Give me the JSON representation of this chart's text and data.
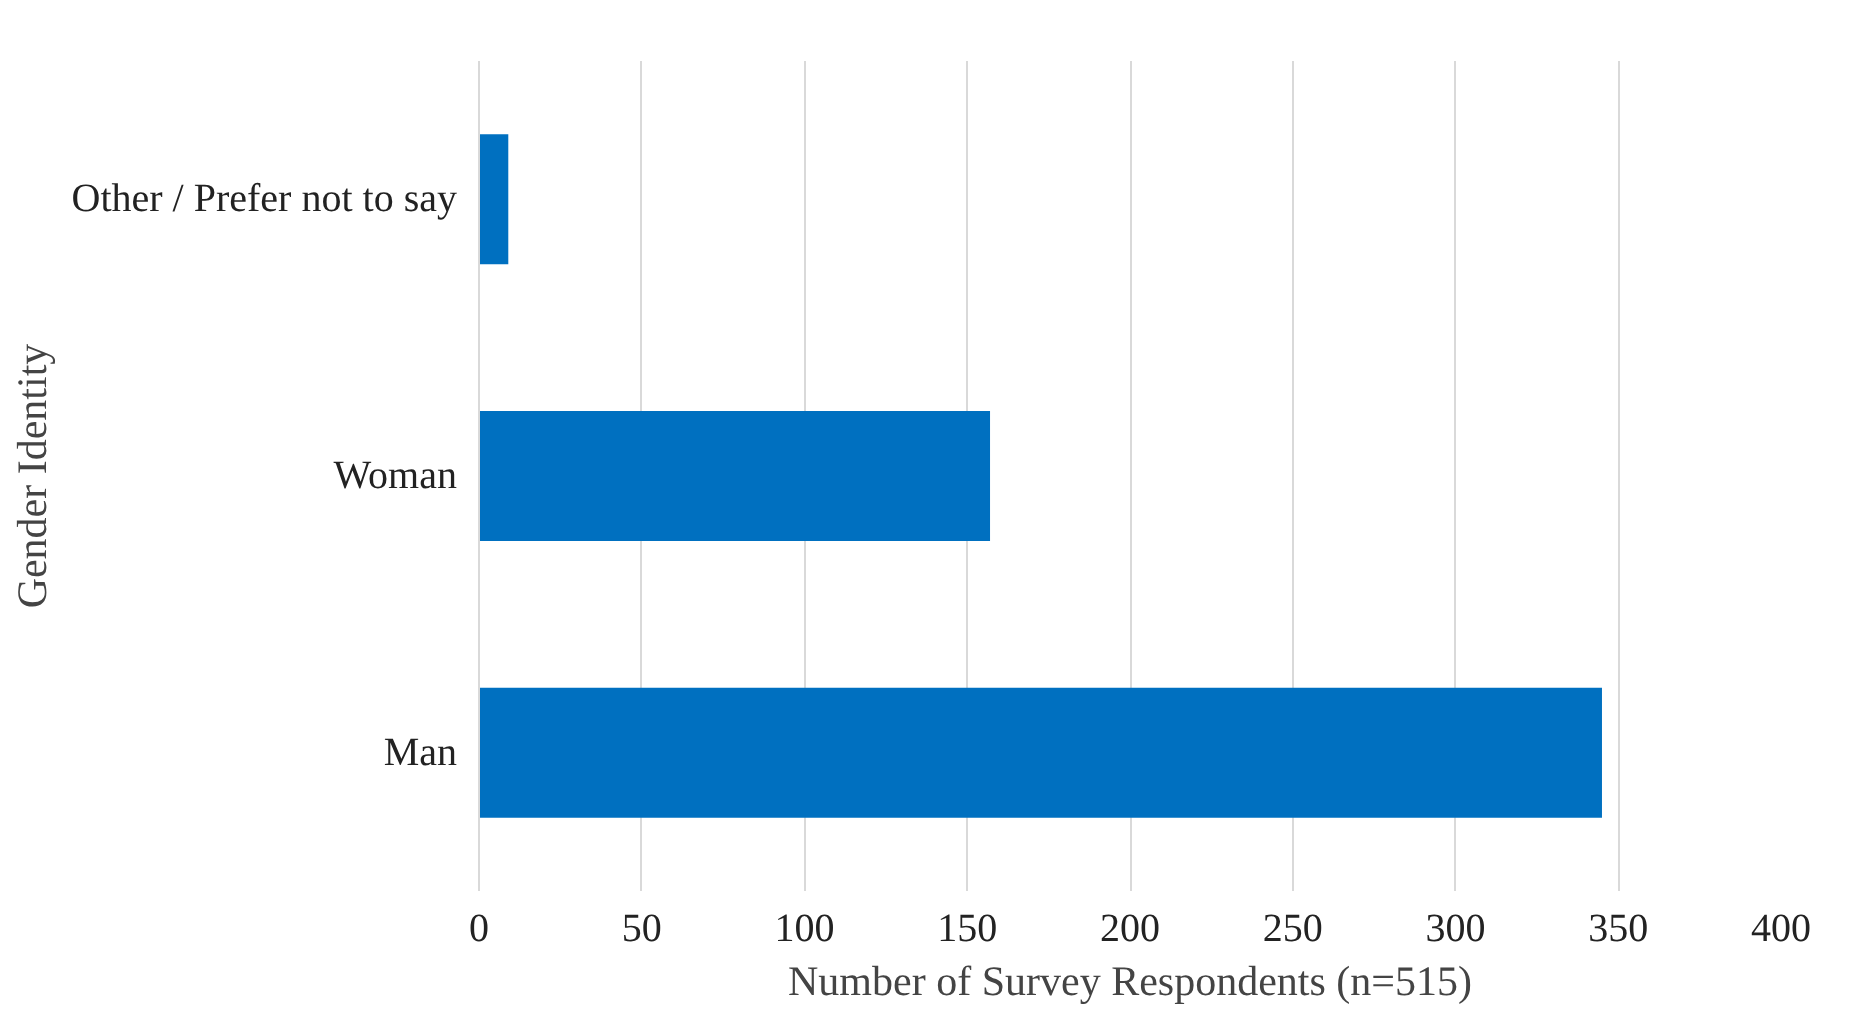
{
  "chart_data": {
    "type": "bar",
    "orientation": "horizontal",
    "xlabel": "Number of Survey Respondents (n=515)",
    "ylabel": "Gender Identity",
    "categories": [
      "Other / Prefer not to say",
      "Woman",
      "Man"
    ],
    "values": [
      9,
      157,
      345
    ],
    "color": "#0070c0",
    "xlim": [
      0,
      400
    ],
    "xticks": [
      0,
      50,
      100,
      150,
      200,
      250,
      300,
      350,
      400
    ],
    "grid": "x"
  }
}
